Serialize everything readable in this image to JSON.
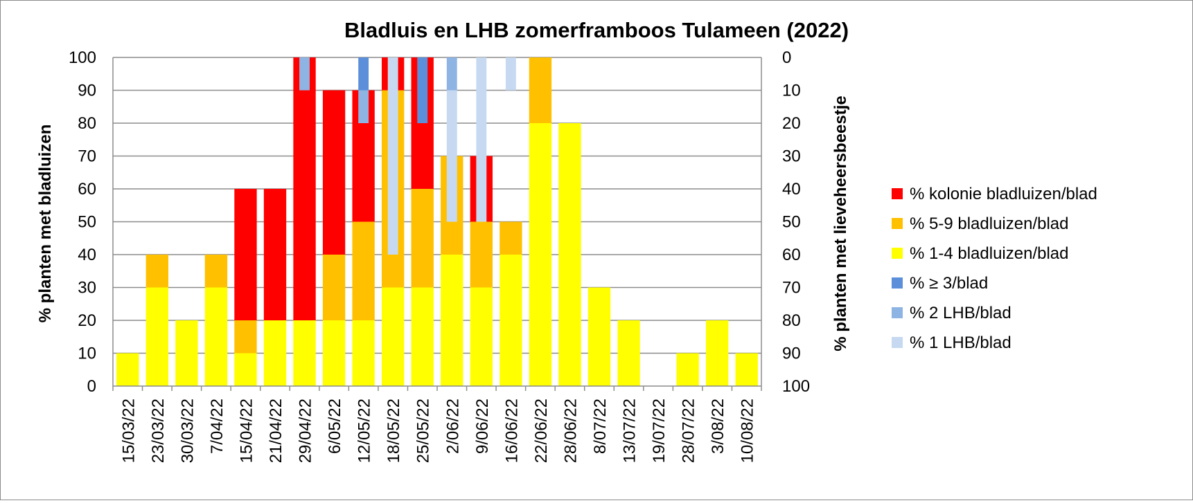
{
  "chart_data": {
    "type": "bar",
    "stacked": true,
    "title": "Bladluis en LHB zomerframboos Tulameen (2022)",
    "ylabel": "% planten met bladluizen",
    "y2label": "% planten met lieveheersbeestje",
    "ylim": [
      0,
      100
    ],
    "y2lim": [
      100,
      0
    ],
    "yticks": [
      "0",
      "10",
      "20",
      "30",
      "40",
      "50",
      "60",
      "70",
      "80",
      "90",
      "100"
    ],
    "y2ticks": [
      "100",
      "90",
      "80",
      "70",
      "60",
      "50",
      "40",
      "30",
      "20",
      "10",
      "0"
    ],
    "grid": true,
    "legend_position": "right",
    "categories": [
      "15/03/22",
      "23/03/22",
      "30/03/22",
      "7/04/22",
      "15/04/22",
      "21/04/22",
      "29/04/22",
      "6/05/22",
      "12/05/22",
      "18/05/22",
      "25/05/22",
      "2/06/22",
      "9/06/22",
      "16/06/22",
      "22/06/22",
      "28/06/22",
      "8/07/22",
      "13/07/22",
      "19/07/22",
      "28/07/22",
      "3/08/22",
      "10/08/22"
    ],
    "aphid_series": [
      {
        "name": "% 1-4 bladluizen/blad",
        "color": "#ffff00",
        "values": [
          10,
          30,
          20,
          30,
          10,
          20,
          20,
          20,
          20,
          30,
          30,
          40,
          30,
          40,
          80,
          80,
          30,
          20,
          0,
          10,
          20,
          10
        ]
      },
      {
        "name": "% 5-9 bladluizen/blad",
        "color": "#ffc000",
        "values": [
          0,
          10,
          0,
          10,
          10,
          0,
          0,
          20,
          30,
          60,
          30,
          30,
          20,
          10,
          20,
          0,
          0,
          0,
          0,
          0,
          0,
          0
        ]
      },
      {
        "name": "% kolonie bladluizen/blad",
        "color": "#ff0000",
        "values": [
          0,
          0,
          0,
          0,
          40,
          40,
          80,
          50,
          40,
          10,
          40,
          0,
          20,
          0,
          0,
          0,
          0,
          0,
          0,
          0,
          0,
          0
        ]
      }
    ],
    "lhb_series": [
      {
        "name": "% ≥ 3/blad",
        "color": "#5b8fd9",
        "values": [
          0,
          0,
          0,
          0,
          0,
          0,
          0,
          0,
          10,
          0,
          20,
          0,
          0,
          0,
          0,
          0,
          0,
          0,
          0,
          0,
          0,
          0
        ]
      },
      {
        "name": "% 2 LHB/blad",
        "color": "#8eb4e3",
        "values": [
          0,
          0,
          0,
          0,
          0,
          0,
          10,
          0,
          10,
          0,
          0,
          10,
          0,
          0,
          0,
          0,
          0,
          0,
          0,
          0,
          0,
          0
        ]
      },
      {
        "name": "% 1 LHB/blad",
        "color": "#c6d9f1",
        "values": [
          0,
          0,
          0,
          0,
          0,
          0,
          0,
          0,
          0,
          60,
          0,
          40,
          50,
          10,
          0,
          0,
          0,
          0,
          0,
          0,
          0,
          0
        ]
      }
    ],
    "legend": [
      {
        "label": "% kolonie bladluizen/blad",
        "color": "#ff0000"
      },
      {
        "label": "% 5-9 bladluizen/blad",
        "color": "#ffc000"
      },
      {
        "label": "% 1-4 bladluizen/blad",
        "color": "#ffff00"
      },
      {
        "label": "% ≥ 3/blad",
        "color": "#5b8fd9"
      },
      {
        "label": "% 2 LHB/blad",
        "color": "#8eb4e3"
      },
      {
        "label": "% 1 LHB/blad",
        "color": "#c6d9f1"
      }
    ]
  }
}
